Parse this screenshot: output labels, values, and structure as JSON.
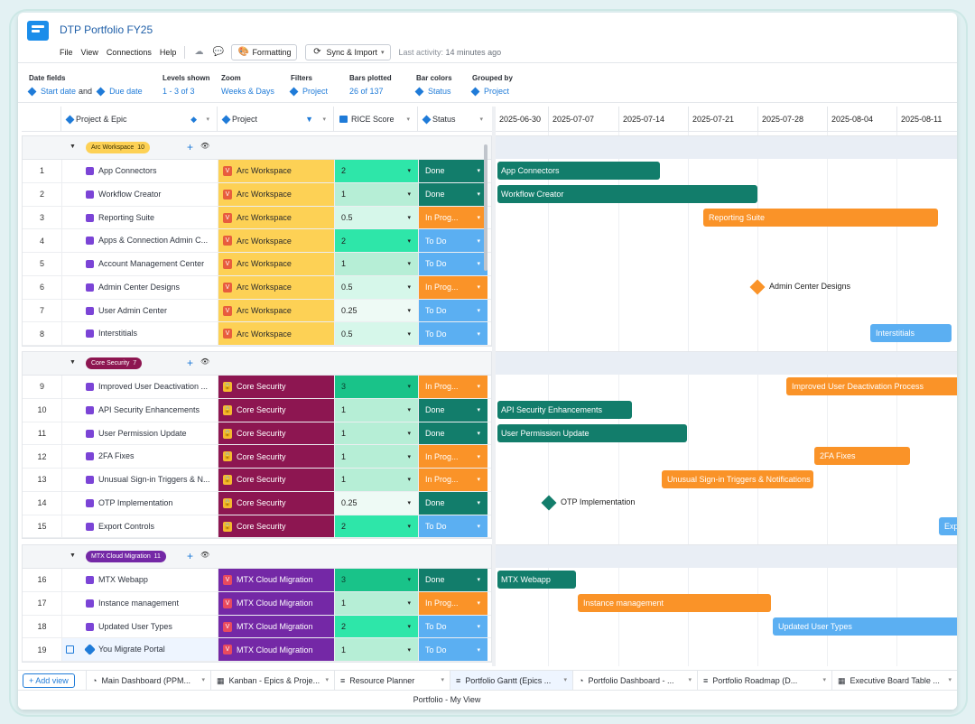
{
  "app": {
    "title": "DTP Portfolio FY25"
  },
  "menu": {
    "file": "File",
    "view": "View",
    "connections": "Connections",
    "help": "Help"
  },
  "toolbar": {
    "formatting": "Formatting",
    "sync": "Sync & Import",
    "activity_label": "Last activity:",
    "activity_value": "14 minutes ago"
  },
  "filters": {
    "date_fields": {
      "label": "Date fields",
      "start": "Start date",
      "and": "and",
      "due": "Due date"
    },
    "levels": {
      "label": "Levels shown",
      "value": "1 - 3 of 3"
    },
    "zoom": {
      "label": "Zoom",
      "value": "Weeks & Days"
    },
    "filters": {
      "label": "Filters",
      "value": "Project"
    },
    "bars": {
      "label": "Bars plotted",
      "value": "26 of 137"
    },
    "colors": {
      "label": "Bar colors",
      "value": "Status"
    },
    "grouped": {
      "label": "Grouped by",
      "value": "Project"
    }
  },
  "columns": {
    "epic": "Project & Epic",
    "project": "Project",
    "rice": "RICE Score",
    "status": "Status"
  },
  "colors": {
    "arc": "#fdd155",
    "core": "#8d1651",
    "mtx": "#7428a6",
    "done": "#127d6b",
    "progress": "#fa9328",
    "todo": "#5baff2",
    "r1": "#b6eed6",
    "r2": "#2ee6a9",
    "r3": "#19c389",
    "r05": "#d6f7ea",
    "r025": "#eefaf5"
  },
  "dates": [
    "2025-06-30",
    "2025-07-07",
    "2025-07-14",
    "2025-07-21",
    "2025-07-28",
    "2025-08-04",
    "2025-08-11"
  ],
  "groups": [
    {
      "name": "Arc Workspace",
      "count": "10",
      "rows": [
        {
          "n": "1",
          "epic": "App Connectors",
          "project": "Arc Workspace",
          "rice": "2",
          "status": "Done"
        },
        {
          "n": "2",
          "epic": "Workflow Creator",
          "project": "Arc Workspace",
          "rice": "1",
          "status": "Done"
        },
        {
          "n": "3",
          "epic": "Reporting Suite",
          "project": "Arc Workspace",
          "rice": "0.5",
          "status": "In Prog..."
        },
        {
          "n": "4",
          "epic": "Apps & Connection Admin C...",
          "project": "Arc Workspace",
          "rice": "2",
          "status": "To Do"
        },
        {
          "n": "5",
          "epic": "Account Management Center",
          "project": "Arc Workspace",
          "rice": "1",
          "status": "To Do"
        },
        {
          "n": "6",
          "epic": "Admin Center Designs",
          "project": "Arc Workspace",
          "rice": "0.5",
          "status": "In Prog..."
        },
        {
          "n": "7",
          "epic": "User Admin Center",
          "project": "Arc Workspace",
          "rice": "0.25",
          "status": "To Do"
        },
        {
          "n": "8",
          "epic": "Interstitials",
          "project": "Arc Workspace",
          "rice": "0.5",
          "status": "To Do"
        }
      ]
    },
    {
      "name": "Core Security",
      "count": "7",
      "rows": [
        {
          "n": "9",
          "epic": "Improved User Deactivation ...",
          "project": "Core Security",
          "rice": "3",
          "status": "In Prog..."
        },
        {
          "n": "10",
          "epic": "API Security Enhancements",
          "project": "Core Security",
          "rice": "1",
          "status": "Done"
        },
        {
          "n": "11",
          "epic": "User Permission Update",
          "project": "Core Security",
          "rice": "1",
          "status": "Done"
        },
        {
          "n": "12",
          "epic": "2FA Fixes",
          "project": "Core Security",
          "rice": "1",
          "status": "In Prog..."
        },
        {
          "n": "13",
          "epic": "Unusual Sign-in Triggers & N...",
          "project": "Core Security",
          "rice": "1",
          "status": "In Prog..."
        },
        {
          "n": "14",
          "epic": "OTP Implementation",
          "project": "Core Security",
          "rice": "0.25",
          "status": "Done"
        },
        {
          "n": "15",
          "epic": "Export Controls",
          "project": "Core Security",
          "rice": "2",
          "status": "To Do"
        }
      ]
    },
    {
      "name": "MTX Cloud Migration",
      "count": "11",
      "rows": [
        {
          "n": "16",
          "epic": "MTX Webapp",
          "project": "MTX Cloud Migration",
          "rice": "3",
          "status": "Done"
        },
        {
          "n": "17",
          "epic": "Instance management",
          "project": "MTX Cloud Migration",
          "rice": "1",
          "status": "In Prog..."
        },
        {
          "n": "18",
          "epic": "Updated User Types",
          "project": "MTX Cloud Migration",
          "rice": "2",
          "status": "To Do"
        },
        {
          "n": "19",
          "epic": "You Migrate Portal",
          "project": "MTX Cloud Migration",
          "rice": "1",
          "status": "To Do"
        }
      ]
    }
  ],
  "bars": {
    "app_connectors": "App Connectors",
    "workflow_creator": "Workflow Creator",
    "reporting_suite": "Reporting Suite",
    "admin_center_designs": "Admin Center Designs",
    "interstitials": "Interstitials",
    "improved_user": "Improved User Deactivation Process",
    "api_security": "API Security Enhancements",
    "user_permission": "User Permission Update",
    "twofa": "2FA Fixes",
    "unusual": "Unusual Sign-in Triggers & Notifications",
    "otp": "OTP Implementation",
    "export": "Exp",
    "mtx_webapp": "MTX Webapp",
    "instance": "Instance management",
    "updated_types": "Updated User Types"
  },
  "tabs": {
    "add_view": "Add view",
    "items": [
      "Main Dashboard (PPM...",
      "Kanban - Epics & Proje...",
      "Resource Planner",
      "Portfolio Gantt (Epics ...",
      "Portfolio Dashboard - ...",
      "Portfolio Roadmap (D...",
      "Executive Board Table ..."
    ]
  },
  "status_bar": {
    "text": "Portfolio - My View"
  }
}
